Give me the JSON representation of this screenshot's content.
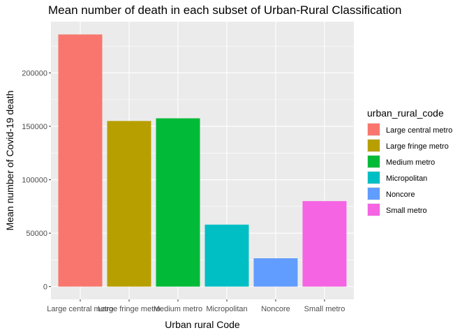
{
  "chart_data": {
    "type": "bar",
    "title": "Mean number of death in each subset of Urban-Rural Classification",
    "xlabel": "Urban rural Code",
    "ylabel": "Mean number of Covid-19 death",
    "categories": [
      "Large central metro",
      "Large fringe metro",
      "Medium metro",
      "Micropolitan",
      "Noncore",
      "Small metro"
    ],
    "values": [
      236000,
      155000,
      157500,
      58000,
      26500,
      80000
    ],
    "colors": [
      "#F8766D",
      "#B79F00",
      "#00BA38",
      "#00BFC4",
      "#619CFF",
      "#F564E3"
    ],
    "yticks": [
      0,
      50000,
      100000,
      150000,
      200000
    ],
    "ylim": [
      -12000,
      248000
    ],
    "grid": true,
    "legend": {
      "title": "urban_rural_code",
      "position": "right",
      "entries": [
        "Large central metro",
        "Large fringe metro",
        "Medium metro",
        "Micropolitan",
        "Noncore",
        "Small metro"
      ]
    },
    "panel_background": "#EBEBEB",
    "grid_color": "#FFFFFF"
  }
}
